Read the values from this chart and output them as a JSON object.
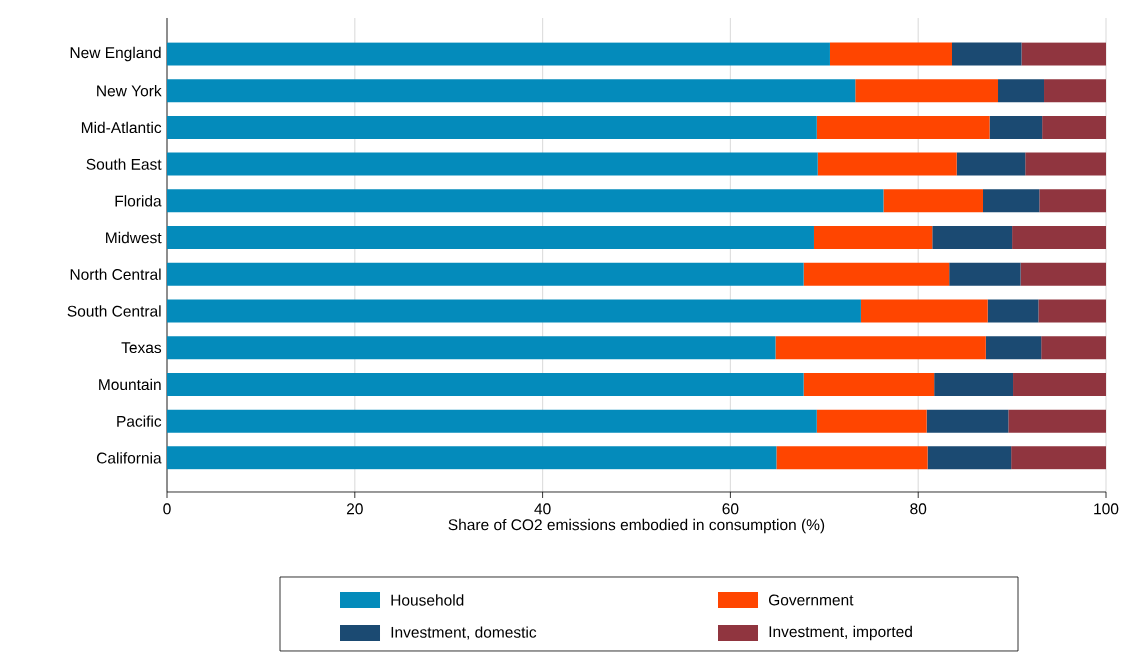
{
  "chart_data": {
    "type": "bar",
    "orientation": "horizontal",
    "stacked": true,
    "xlabel": "Share of CO2 emissions embodied in consumption (%)",
    "categories": [
      "New England",
      "New York",
      "Mid-Atlantic",
      "South East",
      "Florida",
      "Midwest",
      "North Central",
      "South Central",
      "Texas",
      "Mountain",
      "Pacific",
      "California"
    ],
    "series": [
      {
        "name": "Household",
        "color": "#048bbb",
        "values": [
          70.6,
          73.3,
          69.2,
          69.3,
          76.3,
          68.9,
          67.8,
          73.9,
          64.8,
          67.8,
          69.2,
          64.9
        ]
      },
      {
        "name": "Government",
        "color": "#ff4500",
        "values": [
          13.0,
          15.2,
          18.4,
          14.8,
          10.6,
          12.6,
          15.5,
          13.5,
          22.4,
          13.9,
          11.7,
          16.1
        ]
      },
      {
        "name": "Investment, domestic",
        "color": "#1b4a72",
        "values": [
          7.4,
          4.9,
          5.6,
          7.3,
          6.0,
          8.5,
          7.6,
          5.4,
          5.9,
          8.4,
          8.7,
          8.9
        ]
      },
      {
        "name": "Investment, imported",
        "color": "#90353f",
        "values": [
          9.0,
          6.6,
          6.8,
          8.6,
          7.1,
          10.0,
          9.1,
          7.2,
          6.9,
          9.9,
          10.4,
          10.1
        ]
      }
    ],
    "xlim": [
      0,
      100
    ],
    "xticks": [
      0,
      20,
      40,
      60,
      80,
      100
    ],
    "grid": "x",
    "legend": "bottom"
  }
}
